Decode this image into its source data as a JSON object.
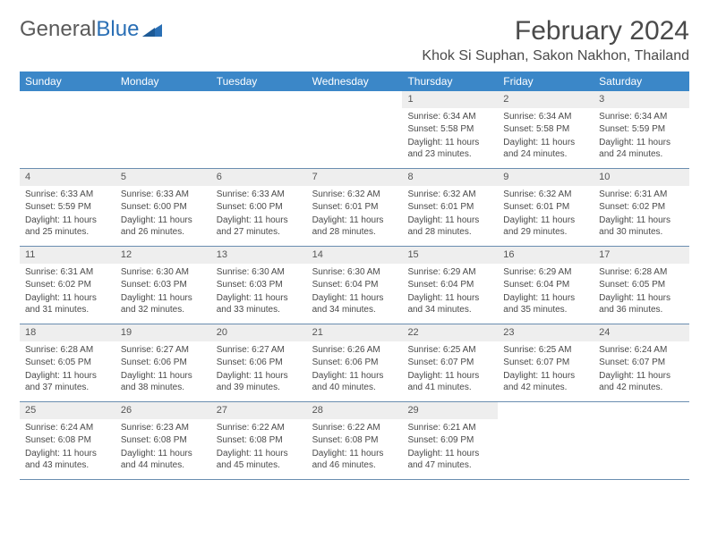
{
  "brand": {
    "part1": "General",
    "part2": "Blue"
  },
  "title": "February 2024",
  "location": "Khok Si Suphan, Sakon Nakhon, Thailand",
  "colors": {
    "header_bg": "#3b87c8",
    "header_text": "#ffffff",
    "daynum_bg": "#eeeeee",
    "week_border": "#6a8db0",
    "text": "#4a4a4a",
    "logo_gray": "#5a5a5a",
    "logo_blue": "#2a6fb5"
  },
  "day_headers": [
    "Sunday",
    "Monday",
    "Tuesday",
    "Wednesday",
    "Thursday",
    "Friday",
    "Saturday"
  ],
  "weeks": [
    [
      {
        "n": "",
        "sr": "",
        "ss": "",
        "dl": ""
      },
      {
        "n": "",
        "sr": "",
        "ss": "",
        "dl": ""
      },
      {
        "n": "",
        "sr": "",
        "ss": "",
        "dl": ""
      },
      {
        "n": "",
        "sr": "",
        "ss": "",
        "dl": ""
      },
      {
        "n": "1",
        "sr": "Sunrise: 6:34 AM",
        "ss": "Sunset: 5:58 PM",
        "dl": "Daylight: 11 hours and 23 minutes."
      },
      {
        "n": "2",
        "sr": "Sunrise: 6:34 AM",
        "ss": "Sunset: 5:58 PM",
        "dl": "Daylight: 11 hours and 24 minutes."
      },
      {
        "n": "3",
        "sr": "Sunrise: 6:34 AM",
        "ss": "Sunset: 5:59 PM",
        "dl": "Daylight: 11 hours and 24 minutes."
      }
    ],
    [
      {
        "n": "4",
        "sr": "Sunrise: 6:33 AM",
        "ss": "Sunset: 5:59 PM",
        "dl": "Daylight: 11 hours and 25 minutes."
      },
      {
        "n": "5",
        "sr": "Sunrise: 6:33 AM",
        "ss": "Sunset: 6:00 PM",
        "dl": "Daylight: 11 hours and 26 minutes."
      },
      {
        "n": "6",
        "sr": "Sunrise: 6:33 AM",
        "ss": "Sunset: 6:00 PM",
        "dl": "Daylight: 11 hours and 27 minutes."
      },
      {
        "n": "7",
        "sr": "Sunrise: 6:32 AM",
        "ss": "Sunset: 6:01 PM",
        "dl": "Daylight: 11 hours and 28 minutes."
      },
      {
        "n": "8",
        "sr": "Sunrise: 6:32 AM",
        "ss": "Sunset: 6:01 PM",
        "dl": "Daylight: 11 hours and 28 minutes."
      },
      {
        "n": "9",
        "sr": "Sunrise: 6:32 AM",
        "ss": "Sunset: 6:01 PM",
        "dl": "Daylight: 11 hours and 29 minutes."
      },
      {
        "n": "10",
        "sr": "Sunrise: 6:31 AM",
        "ss": "Sunset: 6:02 PM",
        "dl": "Daylight: 11 hours and 30 minutes."
      }
    ],
    [
      {
        "n": "11",
        "sr": "Sunrise: 6:31 AM",
        "ss": "Sunset: 6:02 PM",
        "dl": "Daylight: 11 hours and 31 minutes."
      },
      {
        "n": "12",
        "sr": "Sunrise: 6:30 AM",
        "ss": "Sunset: 6:03 PM",
        "dl": "Daylight: 11 hours and 32 minutes."
      },
      {
        "n": "13",
        "sr": "Sunrise: 6:30 AM",
        "ss": "Sunset: 6:03 PM",
        "dl": "Daylight: 11 hours and 33 minutes."
      },
      {
        "n": "14",
        "sr": "Sunrise: 6:30 AM",
        "ss": "Sunset: 6:04 PM",
        "dl": "Daylight: 11 hours and 34 minutes."
      },
      {
        "n": "15",
        "sr": "Sunrise: 6:29 AM",
        "ss": "Sunset: 6:04 PM",
        "dl": "Daylight: 11 hours and 34 minutes."
      },
      {
        "n": "16",
        "sr": "Sunrise: 6:29 AM",
        "ss": "Sunset: 6:04 PM",
        "dl": "Daylight: 11 hours and 35 minutes."
      },
      {
        "n": "17",
        "sr": "Sunrise: 6:28 AM",
        "ss": "Sunset: 6:05 PM",
        "dl": "Daylight: 11 hours and 36 minutes."
      }
    ],
    [
      {
        "n": "18",
        "sr": "Sunrise: 6:28 AM",
        "ss": "Sunset: 6:05 PM",
        "dl": "Daylight: 11 hours and 37 minutes."
      },
      {
        "n": "19",
        "sr": "Sunrise: 6:27 AM",
        "ss": "Sunset: 6:06 PM",
        "dl": "Daylight: 11 hours and 38 minutes."
      },
      {
        "n": "20",
        "sr": "Sunrise: 6:27 AM",
        "ss": "Sunset: 6:06 PM",
        "dl": "Daylight: 11 hours and 39 minutes."
      },
      {
        "n": "21",
        "sr": "Sunrise: 6:26 AM",
        "ss": "Sunset: 6:06 PM",
        "dl": "Daylight: 11 hours and 40 minutes."
      },
      {
        "n": "22",
        "sr": "Sunrise: 6:25 AM",
        "ss": "Sunset: 6:07 PM",
        "dl": "Daylight: 11 hours and 41 minutes."
      },
      {
        "n": "23",
        "sr": "Sunrise: 6:25 AM",
        "ss": "Sunset: 6:07 PM",
        "dl": "Daylight: 11 hours and 42 minutes."
      },
      {
        "n": "24",
        "sr": "Sunrise: 6:24 AM",
        "ss": "Sunset: 6:07 PM",
        "dl": "Daylight: 11 hours and 42 minutes."
      }
    ],
    [
      {
        "n": "25",
        "sr": "Sunrise: 6:24 AM",
        "ss": "Sunset: 6:08 PM",
        "dl": "Daylight: 11 hours and 43 minutes."
      },
      {
        "n": "26",
        "sr": "Sunrise: 6:23 AM",
        "ss": "Sunset: 6:08 PM",
        "dl": "Daylight: 11 hours and 44 minutes."
      },
      {
        "n": "27",
        "sr": "Sunrise: 6:22 AM",
        "ss": "Sunset: 6:08 PM",
        "dl": "Daylight: 11 hours and 45 minutes."
      },
      {
        "n": "28",
        "sr": "Sunrise: 6:22 AM",
        "ss": "Sunset: 6:08 PM",
        "dl": "Daylight: 11 hours and 46 minutes."
      },
      {
        "n": "29",
        "sr": "Sunrise: 6:21 AM",
        "ss": "Sunset: 6:09 PM",
        "dl": "Daylight: 11 hours and 47 minutes."
      },
      {
        "n": "",
        "sr": "",
        "ss": "",
        "dl": ""
      },
      {
        "n": "",
        "sr": "",
        "ss": "",
        "dl": ""
      }
    ]
  ]
}
